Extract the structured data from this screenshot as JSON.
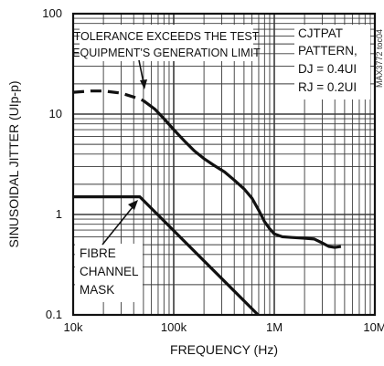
{
  "chart_data": {
    "type": "line",
    "x_scale": "log",
    "y_scale": "log",
    "xlabel": "FREQUENCY (Hz)",
    "ylabel": "SINUSOIDAL JITTER (UIp-p)",
    "xlim": [
      10000,
      10000000
    ],
    "ylim": [
      0.1,
      100
    ],
    "grid": true,
    "x_ticks": [
      {
        "value": 10000,
        "label": "10k"
      },
      {
        "value": 100000,
        "label": "100k"
      },
      {
        "value": 1000000,
        "label": "1M"
      },
      {
        "value": 10000000,
        "label": "10M"
      }
    ],
    "y_ticks": [
      {
        "value": 0.1,
        "label": "0.1"
      },
      {
        "value": 1,
        "label": "1"
      },
      {
        "value": 10,
        "label": "10"
      },
      {
        "value": 100,
        "label": "100"
      }
    ],
    "series": [
      {
        "id": "tolerance-dashed",
        "style": "dashed",
        "points": [
          [
            10000,
            16.5
          ],
          [
            15000,
            17.0
          ],
          [
            20000,
            17.0
          ],
          [
            30000,
            16.2
          ],
          [
            40000,
            14.8
          ],
          [
            50000,
            13.6
          ]
        ]
      },
      {
        "id": "jitter-tolerance",
        "style": "solid",
        "points": [
          [
            50000,
            13.6
          ],
          [
            65000,
            11.2
          ],
          [
            80000,
            9.0
          ],
          [
            100000,
            7.0
          ],
          [
            130000,
            5.3
          ],
          [
            160000,
            4.3
          ],
          [
            200000,
            3.6
          ],
          [
            250000,
            3.1
          ],
          [
            320000,
            2.65
          ],
          [
            400000,
            2.2
          ],
          [
            500000,
            1.8
          ],
          [
            600000,
            1.45
          ],
          [
            700000,
            1.1
          ],
          [
            800000,
            0.85
          ],
          [
            900000,
            0.72
          ],
          [
            1000000,
            0.64
          ],
          [
            1200000,
            0.6
          ],
          [
            1500000,
            0.59
          ],
          [
            2000000,
            0.58
          ],
          [
            2500000,
            0.57
          ],
          [
            3000000,
            0.52
          ],
          [
            3500000,
            0.48
          ],
          [
            4000000,
            0.47
          ],
          [
            4600000,
            0.48
          ]
        ]
      },
      {
        "id": "fibre-channel-mask",
        "style": "solid",
        "points": [
          [
            10000,
            1.5
          ],
          [
            46000,
            1.5
          ],
          [
            690000,
            0.1
          ]
        ]
      }
    ],
    "annotations": [
      {
        "id": "tolerance-note",
        "lines": [
          "TOLERANCE EXCEEDS THE TEST",
          "EQUIPMENT'S GENERATION LIMIT"
        ]
      },
      {
        "id": "mask-note",
        "lines": [
          "FIBRE",
          "CHANNEL",
          "MASK"
        ]
      },
      {
        "id": "condition-note",
        "lines": [
          "CJTPAT",
          "PATTERN,",
          "DJ = 0.4UI",
          "RJ = 0.2UI"
        ]
      }
    ],
    "figure_code": "MAX3772 toc04"
  },
  "colors": {
    "line": "#111111",
    "grid": "#3a3a3a",
    "background": "#ffffff"
  }
}
